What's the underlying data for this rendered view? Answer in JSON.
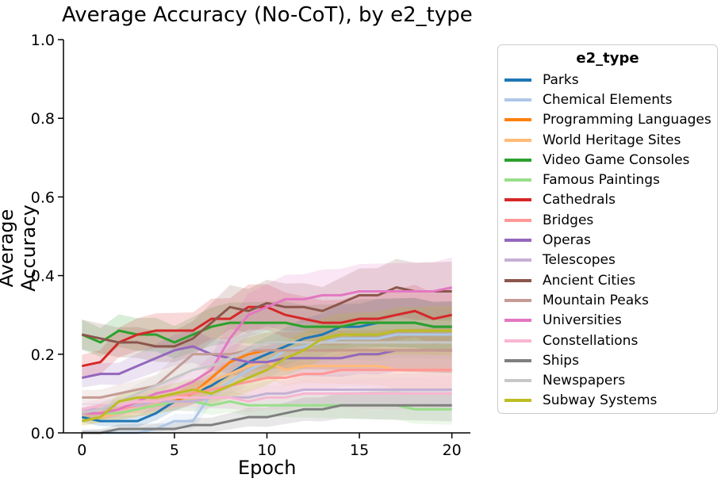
{
  "chart_data": {
    "type": "line",
    "title": "Average Accuracy (No-CoT), by e2_type",
    "xlabel": "Epoch",
    "ylabel": "Average Accuracy",
    "xlim": [
      -1,
      21
    ],
    "ylim": [
      0,
      1.0
    ],
    "xticks": [
      "0",
      "5",
      "10",
      "15",
      "20"
    ],
    "yticks": [
      "0.0",
      "0.2",
      "0.4",
      "0.6",
      "0.8",
      "1.0"
    ],
    "grid": false,
    "legend_placement": "outside-right",
    "legend_title": "e2_type",
    "x": [
      0,
      1,
      2,
      3,
      4,
      5,
      6,
      7,
      8,
      9,
      10,
      11,
      12,
      13,
      14,
      15,
      16,
      17,
      18,
      19,
      20
    ],
    "series": [
      {
        "name": "Parks",
        "color": "#1f77b4",
        "values": [
          0.04,
          0.03,
          0.03,
          0.03,
          0.05,
          0.08,
          0.1,
          0.12,
          0.15,
          0.18,
          0.2,
          0.22,
          0.24,
          0.25,
          0.27,
          0.27,
          0.28,
          0.28,
          0.28,
          0.27,
          0.27
        ]
      },
      {
        "name": "Chemical Elements",
        "color": "#aec7e8",
        "values": [
          0.0,
          0.0,
          0.0,
          0.0,
          0.01,
          0.03,
          0.03,
          0.1,
          0.13,
          0.16,
          0.18,
          0.21,
          0.22,
          0.23,
          0.24,
          0.24,
          0.24,
          0.25,
          0.25,
          0.25,
          0.25
        ]
      },
      {
        "name": "Programming Languages",
        "color": "#ff7f0e",
        "values": [
          0.05,
          0.05,
          0.05,
          0.06,
          0.07,
          0.08,
          0.1,
          0.14,
          0.18,
          0.2,
          0.21,
          0.21,
          0.21,
          0.21,
          0.21,
          0.21,
          0.21,
          0.21,
          0.21,
          0.21,
          0.21
        ]
      },
      {
        "name": "World Heritage Sites",
        "color": "#ffbb78",
        "values": [
          0.03,
          0.04,
          0.05,
          0.06,
          0.07,
          0.09,
          0.1,
          0.13,
          0.15,
          0.17,
          0.18,
          0.16,
          0.17,
          0.17,
          0.17,
          0.17,
          0.17,
          0.16,
          0.16,
          0.16,
          0.16
        ]
      },
      {
        "name": "Video Game Consoles",
        "color": "#2ca02c",
        "values": [
          0.25,
          0.23,
          0.26,
          0.25,
          0.25,
          0.23,
          0.25,
          0.27,
          0.28,
          0.28,
          0.28,
          0.28,
          0.27,
          0.27,
          0.27,
          0.28,
          0.28,
          0.28,
          0.28,
          0.27,
          0.27
        ]
      },
      {
        "name": "Famous Paintings",
        "color": "#98df8a",
        "values": [
          0.05,
          0.05,
          0.05,
          0.06,
          0.07,
          0.08,
          0.08,
          0.07,
          0.08,
          0.07,
          0.07,
          0.07,
          0.07,
          0.07,
          0.07,
          0.07,
          0.07,
          0.07,
          0.06,
          0.06,
          0.06
        ]
      },
      {
        "name": "Cathedrals",
        "color": "#d62728",
        "values": [
          0.17,
          0.18,
          0.23,
          0.25,
          0.26,
          0.26,
          0.26,
          0.29,
          0.29,
          0.32,
          0.32,
          0.3,
          0.29,
          0.28,
          0.28,
          0.29,
          0.29,
          0.3,
          0.31,
          0.29,
          0.3
        ]
      },
      {
        "name": "Bridges",
        "color": "#ff9896",
        "values": [
          0.05,
          0.05,
          0.06,
          0.07,
          0.08,
          0.09,
          0.1,
          0.11,
          0.12,
          0.13,
          0.14,
          0.14,
          0.15,
          0.15,
          0.16,
          0.16,
          0.16,
          0.16,
          0.16,
          0.16,
          0.16
        ]
      },
      {
        "name": "Operas",
        "color": "#9467bd",
        "values": [
          0.14,
          0.15,
          0.15,
          0.17,
          0.19,
          0.21,
          0.22,
          0.2,
          0.19,
          0.18,
          0.18,
          0.19,
          0.19,
          0.19,
          0.19,
          0.2,
          0.2,
          0.21,
          0.21,
          0.21,
          0.21
        ]
      },
      {
        "name": "Telescopes",
        "color": "#c5b0d5",
        "values": [
          0.06,
          0.06,
          0.07,
          0.07,
          0.08,
          0.08,
          0.08,
          0.09,
          0.09,
          0.09,
          0.1,
          0.1,
          0.11,
          0.11,
          0.11,
          0.11,
          0.11,
          0.11,
          0.11,
          0.11,
          0.11
        ]
      },
      {
        "name": "Ancient Cities",
        "color": "#8c564b",
        "values": [
          0.25,
          0.24,
          0.23,
          0.23,
          0.22,
          0.22,
          0.24,
          0.28,
          0.32,
          0.31,
          0.33,
          0.32,
          0.32,
          0.31,
          0.33,
          0.35,
          0.35,
          0.37,
          0.36,
          0.36,
          0.36
        ]
      },
      {
        "name": "Mountain Peaks",
        "color": "#c49c94",
        "values": [
          0.09,
          0.09,
          0.1,
          0.11,
          0.12,
          0.16,
          0.2,
          0.2,
          0.2,
          0.21,
          0.21,
          0.21,
          0.21,
          0.21,
          0.21,
          0.21,
          0.21,
          0.21,
          0.21,
          0.21,
          0.21
        ]
      },
      {
        "name": "Universities",
        "color": "#e377c2",
        "values": [
          0.05,
          0.05,
          0.06,
          0.08,
          0.1,
          0.11,
          0.13,
          0.16,
          0.24,
          0.3,
          0.32,
          0.34,
          0.34,
          0.35,
          0.35,
          0.36,
          0.36,
          0.36,
          0.36,
          0.36,
          0.37
        ]
      },
      {
        "name": "Constellations",
        "color": "#f7b6d2",
        "values": [
          0.06,
          0.07,
          0.07,
          0.08,
          0.08,
          0.09,
          0.09,
          0.09,
          0.09,
          0.08,
          0.09,
          0.09,
          0.1,
          0.1,
          0.1,
          0.1,
          0.1,
          0.1,
          0.1,
          0.1,
          0.1
        ]
      },
      {
        "name": "Ships",
        "color": "#7f7f7f",
        "values": [
          0.0,
          0.0,
          0.01,
          0.01,
          0.01,
          0.01,
          0.02,
          0.02,
          0.03,
          0.04,
          0.04,
          0.05,
          0.06,
          0.06,
          0.07,
          0.07,
          0.07,
          0.07,
          0.07,
          0.07,
          0.07
        ]
      },
      {
        "name": "Newspapers",
        "color": "#c7c7c7",
        "values": [
          0.05,
          0.06,
          0.08,
          0.1,
          0.12,
          0.14,
          0.16,
          0.17,
          0.19,
          0.21,
          0.23,
          0.23,
          0.23,
          0.23,
          0.23,
          0.23,
          0.23,
          0.23,
          0.23,
          0.23,
          0.23
        ]
      },
      {
        "name": "Subway Systems",
        "color": "#bcbd22",
        "values": [
          0.03,
          0.04,
          0.08,
          0.09,
          0.09,
          0.1,
          0.11,
          0.1,
          0.12,
          0.14,
          0.16,
          0.19,
          0.21,
          0.24,
          0.25,
          0.25,
          0.25,
          0.26,
          0.26,
          0.26,
          0.26
        ]
      }
    ]
  }
}
